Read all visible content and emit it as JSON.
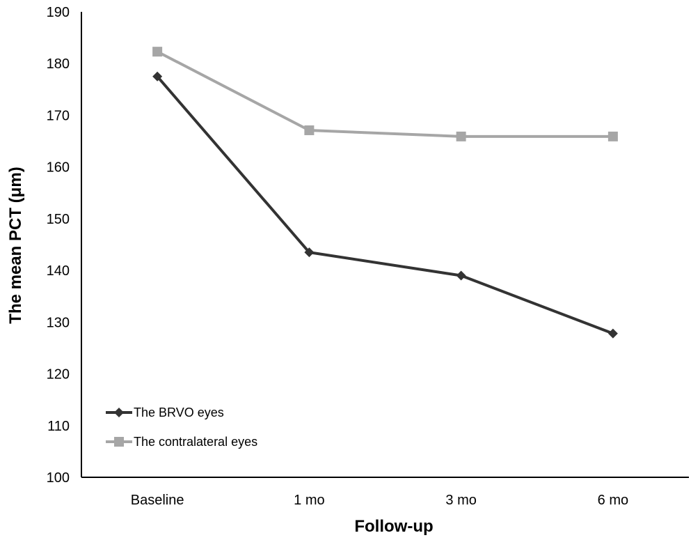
{
  "chart_data": {
    "type": "line",
    "title": "",
    "xlabel": "Follow-up",
    "ylabel": "The mean PCT (μm)",
    "categories": [
      "Baseline",
      "1 mo",
      "3 mo",
      "6 mo"
    ],
    "ylim": [
      100,
      190
    ],
    "yticks": [
      100,
      110,
      120,
      130,
      140,
      150,
      160,
      170,
      180,
      190
    ],
    "grid": false,
    "legend_position": "bottom-left",
    "series": [
      {
        "name": "The BRVO eyes",
        "values": [
          177.5,
          143.5,
          139,
          127.8
        ],
        "color": "#333333",
        "marker": "diamond"
      },
      {
        "name": "The contralateral eyes",
        "values": [
          182.3,
          167.1,
          165.9,
          165.9
        ],
        "color": "#a6a6a6",
        "marker": "square"
      }
    ]
  }
}
